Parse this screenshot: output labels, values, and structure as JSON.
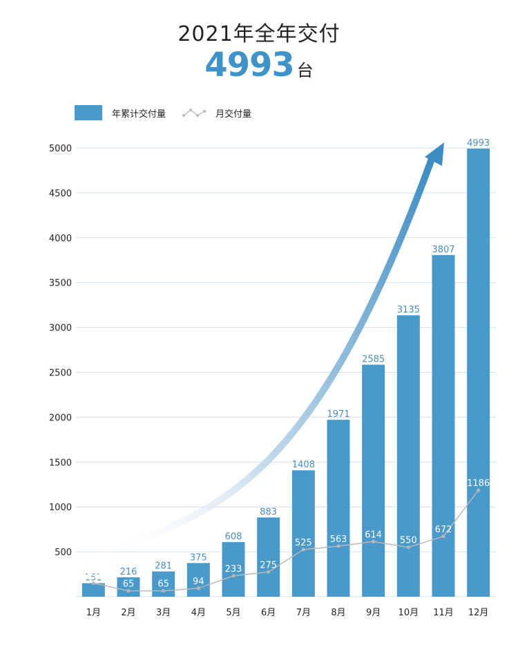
{
  "header": {
    "title": "2021年全年交付",
    "total_value": "4993",
    "total_unit": "台"
  },
  "legend": {
    "cumulative_label": "年累计交付量",
    "monthly_label": "月交付量"
  },
  "colors": {
    "bar": "#4a99cb",
    "line": "#b9b9b9",
    "grid": "#cfe0ec",
    "arrow": "#3d8cc2"
  },
  "chart_data": {
    "type": "bar",
    "categories": [
      "1月",
      "2月",
      "3月",
      "4月",
      "5月",
      "6月",
      "7月",
      "8月",
      "9月",
      "10月",
      "11月",
      "12月"
    ],
    "series": [
      {
        "name": "年累计交付量",
        "type": "bar",
        "values": [
          151,
          216,
          281,
          375,
          608,
          883,
          1408,
          1971,
          2585,
          3135,
          3807,
          4993
        ]
      },
      {
        "name": "月交付量",
        "type": "line",
        "values": [
          151,
          65,
          65,
          94,
          233,
          275,
          525,
          563,
          614,
          550,
          672,
          1186
        ]
      }
    ],
    "yticks": [
      500,
      1000,
      1500,
      2000,
      2500,
      3000,
      3500,
      4000,
      4500,
      5000
    ],
    "ylim": [
      0,
      5000
    ],
    "grid": true,
    "legend_position": "top-left",
    "title": "2021年全年交付",
    "xlabel": "",
    "ylabel": ""
  }
}
